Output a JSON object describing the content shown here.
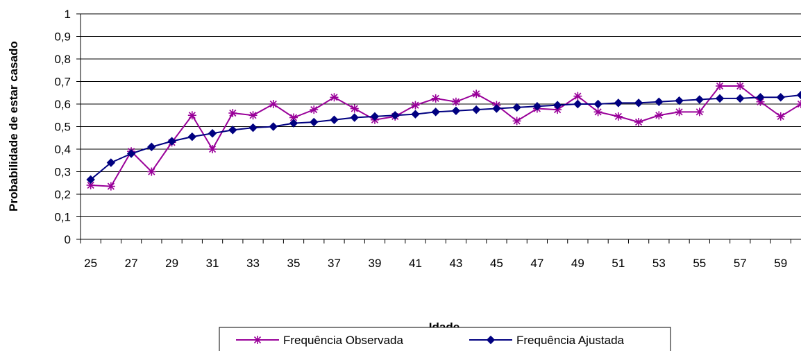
{
  "chart_data": {
    "type": "line",
    "title": "",
    "xlabel": "Idade",
    "ylabel": "Probabilidade de estar casado",
    "ylim": [
      0,
      1
    ],
    "yticks": [
      "0",
      "0,1",
      "0,2",
      "0,3",
      "0,4",
      "0,5",
      "0,6",
      "0,7",
      "0,8",
      "0,9",
      "1"
    ],
    "x": [
      25,
      26,
      27,
      28,
      29,
      30,
      31,
      32,
      33,
      34,
      35,
      36,
      37,
      38,
      39,
      40,
      41,
      42,
      43,
      44,
      45,
      46,
      47,
      48,
      49,
      50,
      51,
      52,
      53,
      54,
      55,
      56,
      57,
      58,
      59,
      60
    ],
    "xtick_labels": [
      "25",
      "27",
      "29",
      "31",
      "33",
      "35",
      "37",
      "39",
      "41",
      "43",
      "45",
      "47",
      "49",
      "51",
      "53",
      "55",
      "57",
      "59"
    ],
    "grid": "horizontal",
    "legend_position": "bottom",
    "series": [
      {
        "name": "Frequência Observada",
        "color": "#990099",
        "marker": "star-icon",
        "values": [
          0.24,
          0.235,
          0.39,
          0.3,
          0.43,
          0.55,
          0.4,
          0.56,
          0.55,
          0.6,
          0.54,
          0.575,
          0.63,
          0.58,
          0.53,
          0.545,
          0.595,
          0.625,
          0.61,
          0.645,
          0.595,
          0.525,
          0.58,
          0.575,
          0.635,
          0.565,
          0.545,
          0.52,
          0.55,
          0.565,
          0.565,
          0.68,
          0.68,
          0.61,
          0.545,
          0.6
        ]
      },
      {
        "name": "Frequência Ajustada",
        "color": "#000080",
        "marker": "diamond-icon",
        "values": [
          0.265,
          0.34,
          0.38,
          0.41,
          0.435,
          0.455,
          0.47,
          0.485,
          0.495,
          0.5,
          0.515,
          0.52,
          0.53,
          0.54,
          0.545,
          0.55,
          0.555,
          0.565,
          0.57,
          0.575,
          0.58,
          0.585,
          0.59,
          0.595,
          0.6,
          0.6,
          0.605,
          0.605,
          0.61,
          0.615,
          0.62,
          0.625,
          0.625,
          0.63,
          0.63,
          0.64
        ]
      }
    ]
  }
}
